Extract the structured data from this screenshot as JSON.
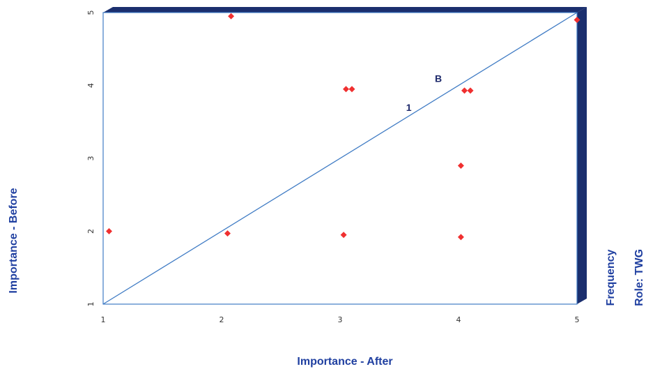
{
  "colors": {
    "frame": "#1b2f6e",
    "line": "#3f7bc4",
    "point": "#f03030",
    "axis_title": "#1f3fa0"
  },
  "chart_data": {
    "type": "scatter",
    "title": "",
    "xlabel": "Importance - After",
    "ylabel": "Importance - Before",
    "right_labels": [
      "Frequency",
      "Role: TWG"
    ],
    "xlim": [
      1,
      5
    ],
    "ylim": [
      1,
      5
    ],
    "x_ticks": [
      "1",
      "2",
      "3",
      "4",
      "5"
    ],
    "y_ticks": [
      "1",
      "2",
      "3",
      "4",
      "5"
    ],
    "grid": false,
    "reference_line": {
      "from": [
        1,
        1
      ],
      "to": [
        5,
        5
      ]
    },
    "annotations": [
      {
        "text": "B",
        "x": 3.83,
        "y": 4.05
      },
      {
        "text": "1",
        "x": 3.58,
        "y": 3.65
      }
    ],
    "points": [
      {
        "x": 2.08,
        "y": 4.95
      },
      {
        "x": 3.05,
        "y": 3.95
      },
      {
        "x": 3.1,
        "y": 3.95
      },
      {
        "x": 4.05,
        "y": 3.93
      },
      {
        "x": 4.1,
        "y": 3.93
      },
      {
        "x": 5.0,
        "y": 4.9
      },
      {
        "x": 4.02,
        "y": 2.9
      },
      {
        "x": 1.05,
        "y": 2.0
      },
      {
        "x": 2.05,
        "y": 1.97
      },
      {
        "x": 3.03,
        "y": 1.95
      },
      {
        "x": 4.02,
        "y": 1.92
      }
    ]
  }
}
